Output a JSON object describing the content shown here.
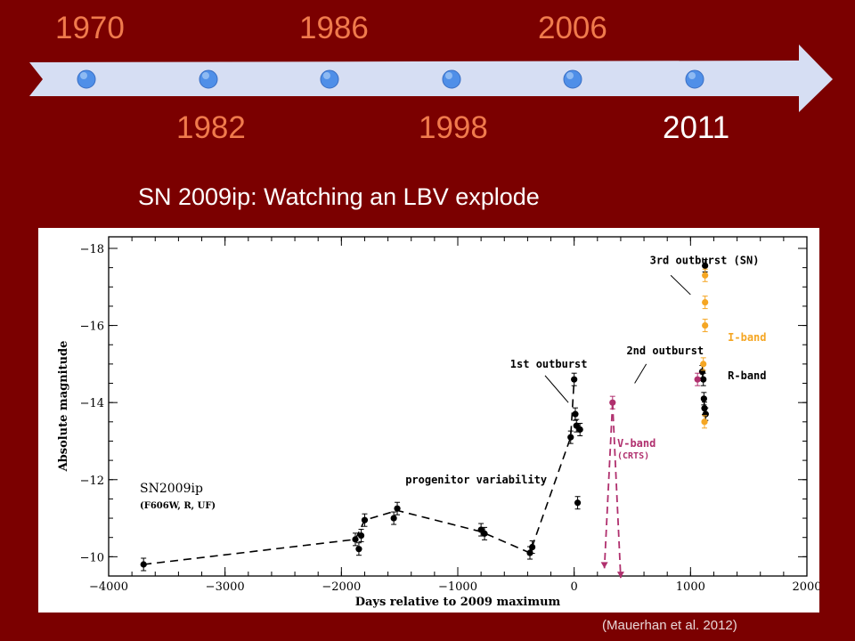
{
  "timeline": {
    "years_top": [
      "1970",
      "1986",
      "2006"
    ],
    "years_bottom": [
      "1982",
      "1998",
      "2011"
    ],
    "current_year": "2011",
    "colors": {
      "background": "#7b0000",
      "arrow": "#d6def3",
      "dot": "#4f8fe8",
      "year": "#f07a4c",
      "current_year": "#ffffff"
    }
  },
  "slide_title": "SN 2009ip: Watching an LBV explode",
  "citation": "(Mauerhan  et al. 2012)",
  "chart_data": {
    "type": "scatter",
    "xlabel": "Days relative to 2009 maximum",
    "ylabel": "Absolute magnitude",
    "xlim": [
      -4000,
      2000
    ],
    "ylim": [
      -9.5,
      -18.3
    ],
    "y_inverted": true,
    "x_ticks": [
      -4000,
      -3000,
      -2000,
      -1000,
      0,
      1000,
      2000
    ],
    "y_ticks": [
      -10,
      -12,
      -14,
      -16,
      -18
    ],
    "grid": false,
    "object_label": "SN2009ip",
    "filters_label": "(F606W, R, UF)",
    "series": [
      {
        "name": "R-band",
        "color": "#000000",
        "points": [
          {
            "x": -3700,
            "y": -9.8
          },
          {
            "x": -1880,
            "y": -10.45
          },
          {
            "x": -1850,
            "y": -10.2
          },
          {
            "x": -1830,
            "y": -10.55
          },
          {
            "x": -1800,
            "y": -10.95
          },
          {
            "x": -1550,
            "y": -11.0
          },
          {
            "x": -1520,
            "y": -11.25
          },
          {
            "x": -800,
            "y": -10.7
          },
          {
            "x": -770,
            "y": -10.6
          },
          {
            "x": -380,
            "y": -10.1
          },
          {
            "x": -360,
            "y": -10.25
          },
          {
            "x": -30,
            "y": -13.1
          },
          {
            "x": 0,
            "y": -14.6
          },
          {
            "x": 10,
            "y": -13.7
          },
          {
            "x": 20,
            "y": -13.4
          },
          {
            "x": 30,
            "y": -11.4
          },
          {
            "x": 50,
            "y": -13.3
          },
          {
            "x": 1100,
            "y": -14.8
          },
          {
            "x": 1110,
            "y": -14.6
          },
          {
            "x": 1115,
            "y": -14.1
          },
          {
            "x": 1120,
            "y": -13.85
          },
          {
            "x": 1125,
            "y": -17.55
          },
          {
            "x": 1130,
            "y": -13.7
          }
        ]
      },
      {
        "name": "I-band",
        "color": "#f5a623",
        "points": [
          {
            "x": 1125,
            "y": -17.3
          },
          {
            "x": 1125,
            "y": -16.6
          },
          {
            "x": 1125,
            "y": -16.0
          },
          {
            "x": 1110,
            "y": -15.0
          },
          {
            "x": 1120,
            "y": -13.5
          }
        ]
      },
      {
        "name": "V-band",
        "note": "(CRTS)",
        "color": "#b0306e",
        "points": [
          {
            "x": 330,
            "y": -14.0
          },
          {
            "x": 1060,
            "y": -14.6
          }
        ],
        "upper_limits": [
          {
            "x": 260,
            "y": -9.7
          },
          {
            "x": 400,
            "y": -9.45
          }
        ]
      }
    ],
    "progenitor_curve": [
      {
        "x": -3700,
        "y": -9.8
      },
      {
        "x": -1880,
        "y": -10.45
      },
      {
        "x": -1800,
        "y": -10.95
      },
      {
        "x": -1520,
        "y": -11.2
      },
      {
        "x": -800,
        "y": -10.65
      },
      {
        "x": -380,
        "y": -10.1
      },
      {
        "x": -30,
        "y": -13.1
      },
      {
        "x": 0,
        "y": -14.6
      }
    ],
    "annotations": [
      {
        "text": "progenitor variability",
        "x": -1450,
        "y": -11.9
      },
      {
        "text": "1st outburst",
        "x": -550,
        "y": -14.9
      },
      {
        "text": "2nd outburst",
        "x": 450,
        "y": -15.25
      },
      {
        "text": "3rd outburst (SN)",
        "x": 650,
        "y": -17.6
      },
      {
        "text": "I-band",
        "x": 1320,
        "y": -15.6
      },
      {
        "text": "R-band",
        "x": 1320,
        "y": -14.6
      },
      {
        "text": "V-band",
        "x": 370,
        "y": -12.85
      },
      {
        "text": "(CRTS)",
        "x": 370,
        "y": -12.55
      }
    ]
  }
}
